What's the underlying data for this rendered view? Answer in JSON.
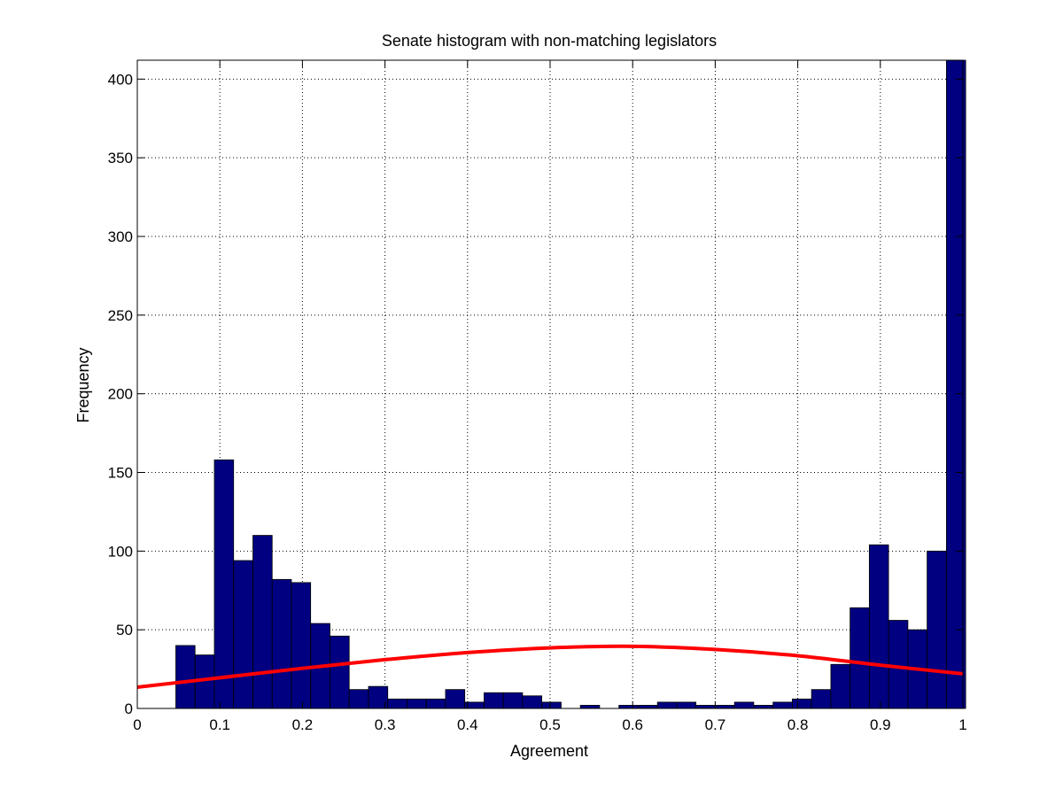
{
  "chart_data": {
    "type": "bar",
    "title": "Senate  histogram with non-matching legislators",
    "xlabel": "Agreement",
    "ylabel": "Frequency",
    "xlim": [
      0,
      1
    ],
    "ylim": [
      0,
      412
    ],
    "grid": true,
    "xticks": [
      "0",
      "0.1",
      "0.2",
      "0.3",
      "0.4",
      "0.5",
      "0.6",
      "0.7",
      "0.8",
      "0.9",
      "1"
    ],
    "xtick_values": [
      0,
      0.1,
      0.2,
      0.3,
      0.4,
      0.5,
      0.6,
      0.7,
      0.8,
      0.9,
      1
    ],
    "yticks": [
      "0",
      "50",
      "100",
      "150",
      "200",
      "250",
      "300",
      "350",
      "400"
    ],
    "ytick_values": [
      0,
      50,
      100,
      150,
      200,
      250,
      300,
      350,
      400
    ],
    "bar_width": 0.0233,
    "bar_centers": [
      0.0583,
      0.0817,
      0.105,
      0.1283,
      0.1517,
      0.175,
      0.1983,
      0.2217,
      0.245,
      0.2683,
      0.2917,
      0.315,
      0.3383,
      0.3617,
      0.385,
      0.4083,
      0.4317,
      0.455,
      0.4783,
      0.5017,
      0.525,
      0.5483,
      0.5717,
      0.595,
      0.6183,
      0.6417,
      0.665,
      0.6883,
      0.7117,
      0.735,
      0.7583,
      0.7817,
      0.805,
      0.8283,
      0.8517,
      0.875,
      0.8983,
      0.9217,
      0.945,
      0.9683,
      0.9917
    ],
    "series": [
      {
        "values": [
          40,
          34,
          158,
          94,
          110,
          82,
          80,
          54,
          46,
          12,
          14,
          6,
          6,
          6,
          12,
          4,
          10,
          10,
          8,
          4,
          0,
          2,
          0,
          2,
          2,
          4,
          4,
          2,
          2,
          4,
          2,
          4,
          6,
          12,
          28,
          64,
          104,
          56,
          50,
          100,
          412
        ],
        "color": "#000080"
      },
      {
        "curve": true,
        "color": "#ff0000",
        "x": [
          0,
          0.1,
          0.2,
          0.3,
          0.4,
          0.5,
          0.6,
          0.7,
          0.8,
          0.9,
          1
        ],
        "values": [
          13.5,
          19.5,
          25.5,
          31,
          35.5,
          38.5,
          39.5,
          37.5,
          33.5,
          27.5,
          22
        ]
      }
    ]
  }
}
